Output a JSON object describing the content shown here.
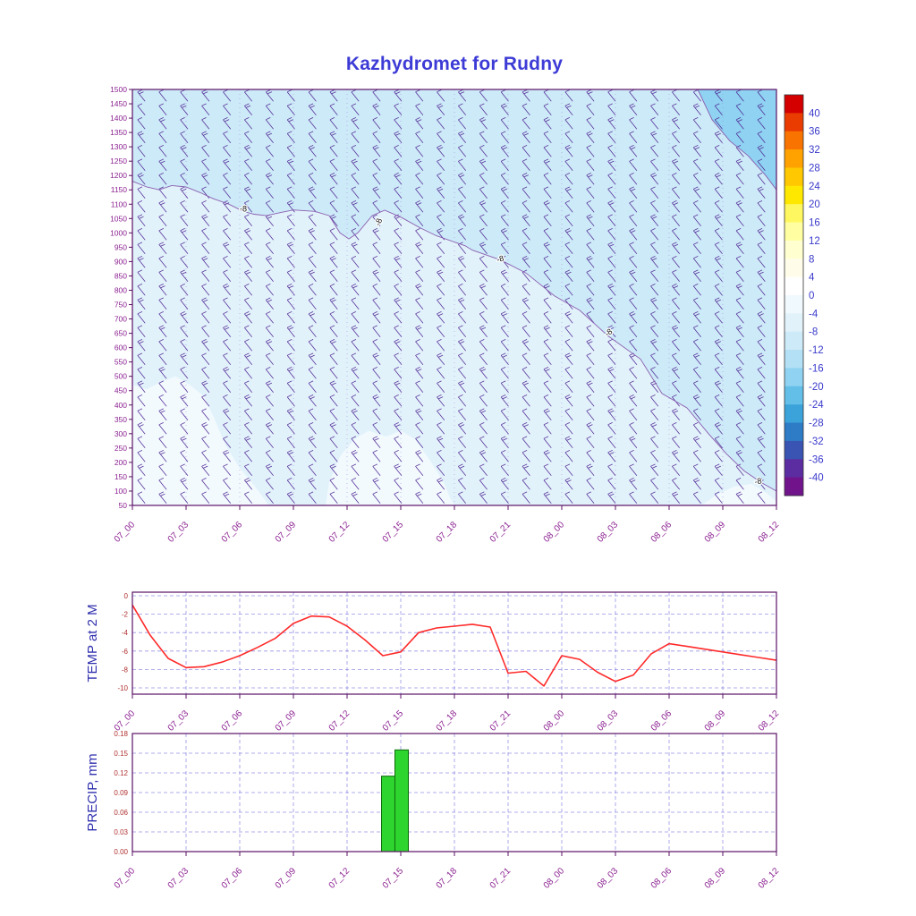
{
  "title": "Kazhydromet for Rudny",
  "colors": {
    "title": "#3d3bd6",
    "frame": "#5a1166",
    "grid": "#7d7ade",
    "main_grid": "#9b84d8",
    "axis_label": "#8b2191",
    "value_label": "#b03030",
    "panel_label": "#2f2fae",
    "colorbar_label": "#3a3acc",
    "colorbar_frame": "#333333",
    "temp_line": "#ff2a2a",
    "precip_bar": "#2ed52e",
    "precip_bar_edge": "#0b6b0b",
    "wind_barb": "#4a2090",
    "contour_line": "#8a5fb0",
    "contour_label": "#111111",
    "region_base": "#e2f2fb",
    "region_upper": "#cdeaf8",
    "region_corner": "#8fd2f1",
    "region_pale": "#f2fafe"
  },
  "time_axis": {
    "hours": [
      0,
      3,
      6,
      9,
      12,
      15,
      18,
      21,
      24,
      27,
      30,
      33,
      36
    ],
    "labels": [
      "07_00",
      "07_03",
      "07_06",
      "07_09",
      "07_12",
      "07_15",
      "07_18",
      "07_21",
      "08_00",
      "08_03",
      "08_06",
      "08_09",
      "08_12"
    ]
  },
  "colorbar": {
    "ticks": [
      40,
      36,
      32,
      28,
      24,
      20,
      16,
      12,
      8,
      4,
      0,
      -4,
      -8,
      -12,
      -16,
      -20,
      -24,
      -28,
      -32,
      -36,
      -40
    ],
    "band_colors": [
      "#d40000",
      "#ea3b00",
      "#f97300",
      "#ffa200",
      "#ffc800",
      "#ffe800",
      "#fff760",
      "#ffffa2",
      "#ffffd0",
      "#fffdea",
      "#ffffff",
      "#f0f9fe",
      "#e2f2fb",
      "#cdeaf8",
      "#b3e0f5",
      "#8fd2f1",
      "#63bfe8",
      "#3ba3da",
      "#2e7cc6",
      "#3954b2",
      "#5c2da0",
      "#71148c"
    ]
  },
  "chart_data": [
    {
      "type": "heatmap",
      "name": "upper-air wind and temperature time-height cross-section",
      "title": "Kazhydromet for Rudny",
      "x_tick_labels": [
        "07_00",
        "07_03",
        "07_06",
        "07_09",
        "07_12",
        "07_15",
        "07_18",
        "07_21",
        "08_00",
        "08_03",
        "08_06",
        "08_09",
        "08_12"
      ],
      "y_ticks": [
        1500,
        1450,
        1400,
        1350,
        1300,
        1250,
        1200,
        1150,
        1100,
        1050,
        1000,
        950,
        900,
        850,
        800,
        750,
        700,
        650,
        600,
        550,
        500,
        450,
        400,
        350,
        300,
        250,
        200,
        150,
        100,
        50
      ],
      "ylim": [
        50,
        1500
      ],
      "xlim_hours": [
        0,
        36
      ],
      "colorbar_ticks": [
        40,
        36,
        32,
        28,
        24,
        20,
        16,
        12,
        8,
        4,
        0,
        -4,
        -8,
        -12,
        -16,
        -20,
        -24,
        -28,
        -32,
        -36,
        -40
      ],
      "contour_label_text": "-8",
      "wind_barbs": {
        "rows": 30,
        "cols": 30,
        "direction": "northwesterly-shaft-down-right"
      },
      "regions": [
        {
          "band": "-8 to -12",
          "color_key": "region_upper",
          "points": [
            [
              0,
              1500
            ],
            [
              36,
              1500
            ],
            [
              36,
              100
            ],
            [
              35.2,
              128
            ],
            [
              34.2,
              170
            ],
            [
              33.2,
              230
            ],
            [
              32.2,
              300
            ],
            [
              31,
              390
            ],
            [
              29.6,
              440
            ],
            [
              28.4,
              560
            ],
            [
              26.6,
              640
            ],
            [
              25,
              730
            ],
            [
              23.6,
              780
            ],
            [
              22,
              860
            ],
            [
              20.6,
              905
            ],
            [
              19,
              940
            ],
            [
              18.6,
              955
            ],
            [
              17,
              990
            ],
            [
              16.1,
              1017
            ],
            [
              15,
              1055
            ],
            [
              14.1,
              1079
            ],
            [
              13.4,
              1060
            ],
            [
              12.6,
              1000
            ],
            [
              12.1,
              979
            ],
            [
              11.6,
              1000
            ],
            [
              11,
              1060
            ],
            [
              10.2,
              1075
            ],
            [
              9,
              1080
            ],
            [
              8.2,
              1070
            ],
            [
              7.5,
              1060
            ],
            [
              6.8,
              1065
            ],
            [
              6.2,
              1075
            ],
            [
              5.4,
              1100
            ],
            [
              4.5,
              1120
            ],
            [
              3.8,
              1140
            ],
            [
              3,
              1160
            ],
            [
              2.2,
              1165
            ],
            [
              1.5,
              1150
            ],
            [
              0.8,
              1160
            ],
            [
              0,
              1180
            ]
          ]
        },
        {
          "band": "-16 to -20 corner",
          "color_key": "region_corner",
          "points": [
            [
              31.6,
              1500
            ],
            [
              32.4,
              1395
            ],
            [
              33.4,
              1320
            ],
            [
              34.4,
              1270
            ],
            [
              35.4,
              1200
            ],
            [
              36,
              1150
            ],
            [
              36,
              1500
            ]
          ]
        },
        {
          "band": "-4 to -8 pale patch left",
          "color_key": "region_pale",
          "points": [
            [
              0,
              470
            ],
            [
              0.8,
              455
            ],
            [
              1.6,
              480
            ],
            [
              2.4,
              500
            ],
            [
              3.2,
              470
            ],
            [
              4,
              430
            ],
            [
              4.6,
              350
            ],
            [
              5.2,
              260
            ],
            [
              6,
              180
            ],
            [
              6.8,
              120
            ],
            [
              7.4,
              70
            ],
            [
              7.6,
              50
            ],
            [
              0,
              50
            ]
          ]
        },
        {
          "band": "-4 to -8 pale patch middle",
          "color_key": "region_pale",
          "points": [
            [
              10.8,
              50
            ],
            [
              11,
              130
            ],
            [
              11.6,
              220
            ],
            [
              12.4,
              280
            ],
            [
              13.2,
              310
            ],
            [
              14.2,
              290
            ],
            [
              15,
              310
            ],
            [
              15.8,
              280
            ],
            [
              16.6,
              210
            ],
            [
              17.4,
              130
            ],
            [
              17.8,
              70
            ],
            [
              18,
              50
            ]
          ]
        },
        {
          "band": "-4 to -8 pale patch right",
          "color_key": "region_pale",
          "points": [
            [
              31.8,
              50
            ],
            [
              32.6,
              85
            ],
            [
              33.6,
              115
            ],
            [
              34.6,
              125
            ],
            [
              35.4,
              95
            ],
            [
              36,
              65
            ],
            [
              36,
              50
            ]
          ]
        }
      ],
      "contours": [
        {
          "value": -8,
          "points": [
            [
              0,
              1180
            ],
            [
              0.8,
              1160
            ],
            [
              1.5,
              1150
            ],
            [
              2.2,
              1165
            ],
            [
              3,
              1160
            ],
            [
              3.8,
              1140
            ],
            [
              4.5,
              1120
            ],
            [
              5.4,
              1100
            ],
            [
              6.2,
              1075
            ],
            [
              6.8,
              1065
            ],
            [
              7.5,
              1060
            ],
            [
              8.2,
              1070
            ],
            [
              9,
              1080
            ],
            [
              10.2,
              1075
            ],
            [
              11,
              1060
            ],
            [
              11.6,
              1000
            ],
            [
              12.1,
              979
            ],
            [
              12.6,
              1000
            ],
            [
              13.4,
              1060
            ],
            [
              14.1,
              1079
            ],
            [
              15,
              1055
            ],
            [
              16.1,
              1017
            ],
            [
              17,
              990
            ],
            [
              18.6,
              955
            ],
            [
              19,
              940
            ],
            [
              20.6,
              905
            ],
            [
              22,
              860
            ],
            [
              23.6,
              780
            ],
            [
              25,
              730
            ],
            [
              26.6,
              640
            ],
            [
              28.4,
              560
            ],
            [
              29.6,
              440
            ],
            [
              31,
              390
            ],
            [
              32.2,
              300
            ],
            [
              33.2,
              230
            ],
            [
              34.2,
              170
            ],
            [
              35.2,
              128
            ],
            [
              36,
              100
            ]
          ]
        },
        {
          "value": -12,
          "points": [
            [
              31.6,
              1500
            ],
            [
              32.4,
              1395
            ],
            [
              33.4,
              1320
            ],
            [
              34.4,
              1270
            ],
            [
              35.4,
              1200
            ],
            [
              36,
              1150
            ]
          ]
        }
      ],
      "contour_labels": [
        {
          "h": 6.2,
          "level": 1075,
          "angle": 0,
          "text": "-8"
        },
        {
          "h": 13.9,
          "level": 1035,
          "angle": -72,
          "text": "-8"
        },
        {
          "h": 20.6,
          "level": 900,
          "angle": -15,
          "text": "-8"
        },
        {
          "h": 26.7,
          "level": 645,
          "angle": -35,
          "text": "-8"
        },
        {
          "h": 35.0,
          "level": 125,
          "angle": -10,
          "text": "-8"
        }
      ]
    },
    {
      "type": "line",
      "title": "TEMP at 2 M",
      "ylim": [
        -10,
        0
      ],
      "y_ticks": [
        0,
        -2,
        -4,
        -6,
        -8,
        -10
      ],
      "x_hours_step": 1,
      "values": [
        -1.0,
        -4.3,
        -6.8,
        -7.8,
        -7.7,
        -7.2,
        -6.5,
        -5.6,
        -4.6,
        -3.0,
        -2.2,
        -2.3,
        -3.3,
        -4.8,
        -6.5,
        -6.1,
        -4.0,
        -3.5,
        -3.3,
        -3.1,
        -3.4,
        -8.4,
        -8.2,
        -9.8,
        -6.5,
        -6.9,
        -8.3,
        -9.3,
        -8.6,
        -6.3,
        -5.2,
        -5.5,
        -5.8,
        -6.1,
        -6.4,
        -6.7,
        -7.0
      ]
    },
    {
      "type": "bar",
      "title": "PRECIP, mm",
      "ylim": [
        0,
        0.18
      ],
      "y_ticks": [
        0.0,
        0.03,
        0.06,
        0.09,
        0.12,
        0.15,
        0.18
      ],
      "bar_width_hours": 0.75,
      "bars": [
        {
          "hour": 14.3,
          "value": 0.115
        },
        {
          "hour": 15.05,
          "value": 0.155
        }
      ]
    }
  ],
  "panel_labels": {
    "temp": "TEMP at 2 M",
    "precip": "PRECIP, mm"
  }
}
